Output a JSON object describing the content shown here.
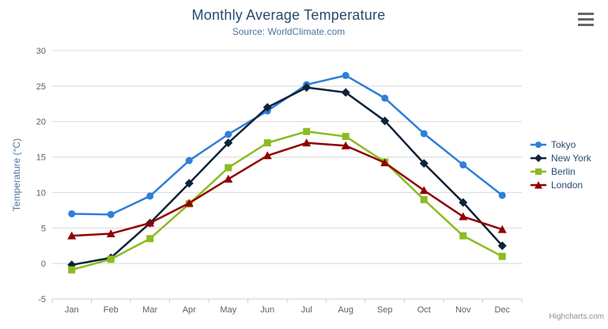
{
  "header": {
    "context_menu_tooltip": "Chart context menu"
  },
  "chart_data": {
    "type": "line",
    "title": "Monthly Average Temperature",
    "subtitle": "Source: WorldClimate.com",
    "categories": [
      "Jan",
      "Feb",
      "Mar",
      "Apr",
      "May",
      "Jun",
      "Jul",
      "Aug",
      "Sep",
      "Oct",
      "Nov",
      "Dec"
    ],
    "xlabel": "",
    "ylabel": "Temperature (°C)",
    "ylim": [
      -5,
      30
    ],
    "ytick_interval": 5,
    "yticks": [
      -5,
      0,
      5,
      10,
      15,
      20,
      25,
      30
    ],
    "grid": true,
    "legend_position": "right",
    "series": [
      {
        "name": "Tokyo",
        "color": "#2f7ed8",
        "marker": "circle",
        "values": [
          7.0,
          6.9,
          9.5,
          14.5,
          18.2,
          21.5,
          25.2,
          26.5,
          23.3,
          18.3,
          13.9,
          9.6
        ]
      },
      {
        "name": "New York",
        "color": "#0d233a",
        "marker": "diamond",
        "values": [
          -0.2,
          0.8,
          5.7,
          11.3,
          17.0,
          22.0,
          24.8,
          24.1,
          20.1,
          14.1,
          8.6,
          2.5
        ]
      },
      {
        "name": "Berlin",
        "color": "#8bbc21",
        "marker": "square",
        "values": [
          -0.9,
          0.6,
          3.5,
          8.4,
          13.5,
          17.0,
          18.6,
          17.9,
          14.3,
          9.0,
          3.9,
          1.0
        ]
      },
      {
        "name": "London",
        "color": "#910000",
        "marker": "triangle",
        "values": [
          3.9,
          4.2,
          5.7,
          8.5,
          11.9,
          15.2,
          17.0,
          16.6,
          14.2,
          10.3,
          6.6,
          4.8
        ]
      }
    ],
    "credits": "Highcharts.com",
    "colors": {
      "title": "#274b6d",
      "subtitle": "#4d759e",
      "axis_title": "#4d759e",
      "axis_labels": "#606060",
      "gridline": "#d8d8d8",
      "axis_line": "#c0d0e0",
      "legend_text": "#274b6d",
      "credits_text": "#909090"
    }
  }
}
